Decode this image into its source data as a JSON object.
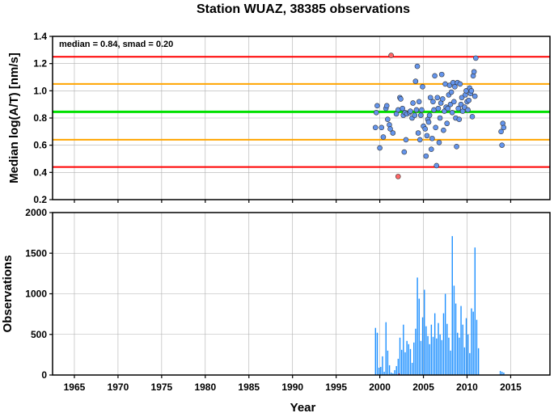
{
  "chart_data": {
    "title": "Station WUAZ, 38385 observations",
    "xlabel": "Year",
    "xlim": [
      1962.5,
      2019.5
    ],
    "x_ticks": [
      1965,
      1970,
      1975,
      1980,
      1985,
      1990,
      1995,
      2000,
      2005,
      2010,
      2015
    ],
    "grid": true,
    "panels": [
      {
        "type": "scatter",
        "ylabel": "Median log(A/T) [nm/s]",
        "ylim": [
          0.2,
          1.4
        ],
        "y_ticks": [
          0.2,
          0.4,
          0.6,
          0.8,
          1.0,
          1.2,
          1.4
        ],
        "y_tick_labels": [
          "0.2",
          "0.4",
          "0.6",
          "0.8",
          "1.0",
          "1.2",
          "1.4"
        ],
        "annotation": "median = 0.84, smad = 0.20",
        "reference_lines": [
          {
            "y": 1.25,
            "color": "#ff0000"
          },
          {
            "y": 1.05,
            "color": "#ffa500"
          },
          {
            "y": 0.845,
            "color": "#00e000"
          },
          {
            "y": 0.64,
            "color": "#ffa500"
          },
          {
            "y": 0.44,
            "color": "#ff0000"
          }
        ],
        "series": [
          {
            "color": "#6495ed",
            "points": [
              [
                1999.5,
                0.73
              ],
              [
                1999.6,
                0.84
              ],
              [
                1999.7,
                0.89
              ],
              [
                2000.0,
                0.58
              ],
              [
                2000.2,
                0.73
              ],
              [
                2000.4,
                0.66
              ],
              [
                2000.7,
                0.87
              ],
              [
                2000.8,
                0.89
              ],
              [
                2000.9,
                0.79
              ],
              [
                2001.1,
                0.75
              ],
              [
                2001.2,
                0.72
              ],
              [
                2001.5,
                0.69
              ],
              [
                2001.9,
                0.83
              ],
              [
                2002.1,
                0.86
              ],
              [
                2002.3,
                0.95
              ],
              [
                2002.4,
                0.94
              ],
              [
                2002.6,
                0.87
              ],
              [
                2002.7,
                0.82
              ],
              [
                2002.8,
                0.55
              ],
              [
                2002.9,
                0.84
              ],
              [
                2003.0,
                0.64
              ],
              [
                2003.1,
                0.83
              ],
              [
                2003.4,
                0.84
              ],
              [
                2003.5,
                0.85
              ],
              [
                2003.7,
                0.8
              ],
              [
                2003.8,
                0.91
              ],
              [
                2004.0,
                0.82
              ],
              [
                2004.1,
                1.07
              ],
              [
                2004.2,
                0.86
              ],
              [
                2004.3,
                1.18
              ],
              [
                2004.4,
                0.69
              ],
              [
                2004.5,
                0.92
              ],
              [
                2004.6,
                0.64
              ],
              [
                2004.7,
                0.82
              ],
              [
                2004.8,
                0.86
              ],
              [
                2004.9,
                1.03
              ],
              [
                2005.0,
                0.74
              ],
              [
                2005.2,
                0.72
              ],
              [
                2005.3,
                0.52
              ],
              [
                2005.4,
                0.67
              ],
              [
                2005.5,
                0.79
              ],
              [
                2005.6,
                0.77
              ],
              [
                2005.7,
                0.82
              ],
              [
                2005.8,
                0.95
              ],
              [
                2005.9,
                0.57
              ],
              [
                2006.0,
                0.65
              ],
              [
                2006.1,
                0.92
              ],
              [
                2006.2,
                0.86
              ],
              [
                2006.3,
                1.11
              ],
              [
                2006.4,
                0.73
              ],
              [
                2006.5,
                0.45
              ],
              [
                2006.6,
                0.95
              ],
              [
                2006.7,
                0.87
              ],
              [
                2006.8,
                0.62
              ],
              [
                2006.9,
                0.8
              ],
              [
                2007.0,
                0.91
              ],
              [
                2007.1,
                1.12
              ],
              [
                2007.2,
                0.94
              ],
              [
                2007.3,
                0.71
              ],
              [
                2007.4,
                0.85
              ],
              [
                2007.5,
                1.05
              ],
              [
                2007.6,
                0.88
              ],
              [
                2007.7,
                0.76
              ],
              [
                2007.8,
                0.87
              ],
              [
                2007.9,
                0.97
              ],
              [
                2008.0,
                1.04
              ],
              [
                2008.1,
                0.9
              ],
              [
                2008.2,
                0.99
              ],
              [
                2008.3,
                0.84
              ],
              [
                2008.4,
                1.06
              ],
              [
                2008.5,
                0.92
              ],
              [
                2008.6,
                1.03
              ],
              [
                2008.7,
                0.8
              ],
              [
                2008.8,
                0.59
              ],
              [
                2008.9,
                1.06
              ],
              [
                2009.0,
                0.87
              ],
              [
                2009.1,
                0.79
              ],
              [
                2009.2,
                1.05
              ],
              [
                2009.3,
                0.9
              ],
              [
                2009.4,
                0.95
              ],
              [
                2009.5,
                0.85
              ],
              [
                2009.7,
                0.88
              ],
              [
                2009.8,
                0.97
              ],
              [
                2009.9,
                1.0
              ],
              [
                2010.0,
                0.92
              ],
              [
                2010.1,
                0.86
              ],
              [
                2010.2,
                0.93
              ],
              [
                2010.3,
                1.02
              ],
              [
                2010.4,
                0.98
              ],
              [
                2010.5,
                1.0
              ],
              [
                2010.6,
                0.81
              ],
              [
                2010.7,
                1.11
              ],
              [
                2010.8,
                1.14
              ],
              [
                2010.9,
                0.96
              ],
              [
                2011.0,
                1.24
              ],
              [
                2013.9,
                0.7
              ],
              [
                2014.0,
                0.6
              ],
              [
                2014.1,
                0.76
              ],
              [
                2014.2,
                0.73
              ]
            ]
          },
          {
            "color": "#ff6666",
            "points": [
              [
                2001.3,
                1.26
              ],
              [
                2002.1,
                0.37
              ]
            ]
          }
        ]
      },
      {
        "type": "bar",
        "ylabel": "Observations",
        "ylim": [
          0,
          2000
        ],
        "y_ticks": [
          0,
          500,
          1000,
          1500,
          2000
        ],
        "y_tick_labels": [
          "0",
          "500",
          "1000",
          "1500",
          "2000"
        ],
        "series": [
          {
            "color": "#1e90ff",
            "x": [
              1999.5,
              1999.7,
              1999.9,
              2000.1,
              2000.3,
              2000.5,
              2000.7,
              2000.9,
              2001.1,
              2001.3,
              2001.5,
              2001.7,
              2001.9,
              2002.1,
              2002.3,
              2002.5,
              2002.7,
              2002.9,
              2003.1,
              2003.3,
              2003.5,
              2003.7,
              2003.9,
              2004.1,
              2004.3,
              2004.5,
              2004.7,
              2004.9,
              2005.1,
              2005.3,
              2005.5,
              2005.7,
              2005.9,
              2006.1,
              2006.3,
              2006.5,
              2006.7,
              2006.9,
              2007.1,
              2007.3,
              2007.5,
              2007.7,
              2007.9,
              2008.1,
              2008.3,
              2008.5,
              2008.7,
              2008.9,
              2009.1,
              2009.3,
              2009.5,
              2009.7,
              2009.9,
              2010.1,
              2010.3,
              2010.5,
              2010.7,
              2010.9,
              2011.1,
              2011.3,
              2013.8,
              2014.0,
              2014.2
            ],
            "values": [
              580,
              520,
              90,
              100,
              230,
              40,
              650,
              300,
              120,
              30,
              20,
              60,
              110,
              200,
              460,
              310,
              620,
              280,
              420,
              380,
              320,
              150,
              400,
              570,
              1200,
              940,
              420,
              710,
              1050,
              600,
              480,
              380,
              620,
              470,
              760,
              450,
              640,
              500,
              430,
              760,
              1000,
              630,
              460,
              300,
              1710,
              1100,
              880,
              520,
              460,
              850,
              620,
              340,
              700,
              500,
              270,
              820,
              780,
              1570,
              680,
              330,
              50,
              40,
              30
            ]
          },
          {
            "color": "#ff3333",
            "x": [
              2002.2
            ],
            "values": [
              20
            ]
          }
        ]
      }
    ]
  }
}
